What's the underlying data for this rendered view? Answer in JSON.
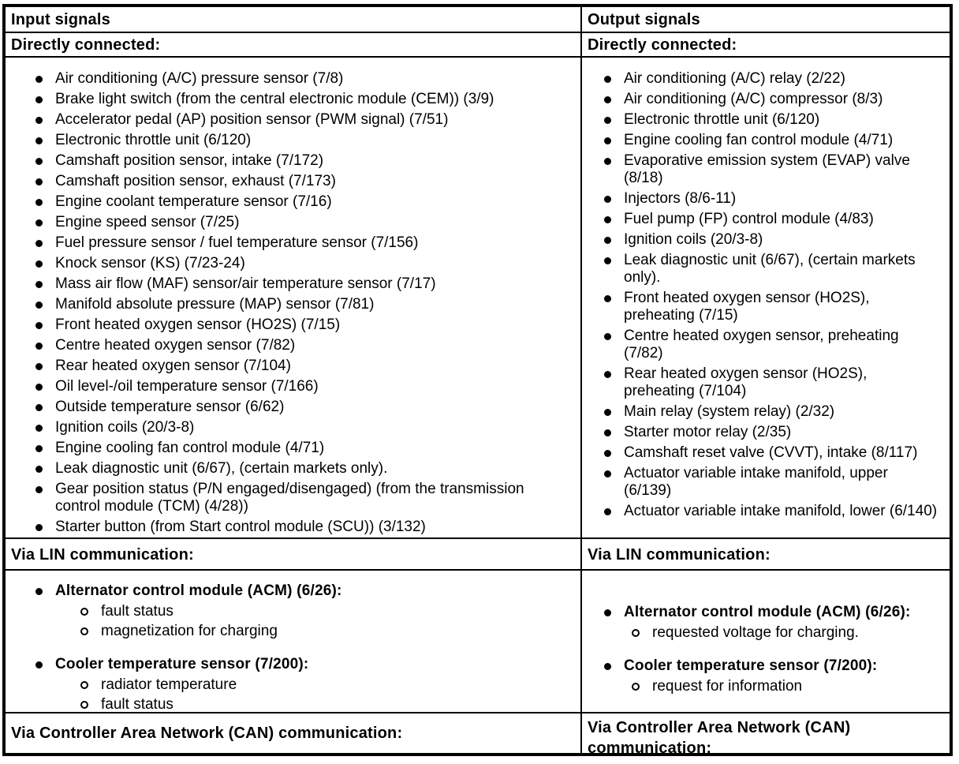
{
  "colors": {
    "background": "#ffffff",
    "text": "#000000",
    "border": "#000000"
  },
  "columns": [
    {
      "header": "Input signals",
      "directly_connected": {
        "label": "Directly connected:",
        "items": [
          "Air conditioning (A/C) pressure sensor (7/8)",
          "Brake light switch (from the central electronic module (CEM)) (3/9)",
          "Accelerator pedal (AP) position sensor (PWM signal) (7/51)",
          "Electronic throttle unit (6/120)",
          "Camshaft position sensor, intake (7/172)",
          "Camshaft position sensor, exhaust (7/173)",
          "Engine coolant temperature sensor (7/16)",
          "Engine speed sensor (7/25)",
          "Fuel pressure sensor / fuel temperature sensor (7/156)",
          "Knock sensor (KS) (7/23-24)",
          "Mass air flow (MAF) sensor/air temperature sensor (7/17)",
          "Manifold absolute pressure (MAP) sensor (7/81)",
          "Front heated oxygen sensor (HO2S) (7/15)",
          "Centre heated oxygen sensor (7/82)",
          "Rear heated oxygen sensor (7/104)",
          "Oil level-/oil temperature sensor (7/166)",
          "Outside temperature sensor (6/62)",
          "Ignition coils (20/3-8)",
          "Engine cooling fan control module (4/71)",
          "Leak diagnostic unit (6/67), (certain markets only).",
          "Gear position status (P/N engaged/disengaged) (from the transmission control module (TCM) (4/28))",
          "Starter button (from Start control module (SCU)) (3/132)"
        ]
      },
      "lin": {
        "label": "Via LIN communication:",
        "groups": [
          {
            "title": "Alternator control module (ACM) (6/26):",
            "subitems": [
              "fault status",
              "magnetization for charging"
            ]
          },
          {
            "title": "Cooler temperature sensor (7/200):",
            "subitems": [
              "radiator temperature",
              "fault status"
            ]
          }
        ]
      },
      "can": {
        "label": "Via Controller Area Network (CAN) communication:"
      }
    },
    {
      "header": "Output signals",
      "directly_connected": {
        "label": "Directly connected:",
        "items": [
          "Air conditioning (A/C) relay (2/22)",
          "Air conditioning (A/C) compressor (8/3)",
          "Electronic throttle unit (6/120)",
          "Engine cooling fan control module (4/71)",
          "Evaporative emission system (EVAP) valve (8/18)",
          "Injectors (8/6-11)",
          "Fuel pump (FP) control module (4/83)",
          "Ignition coils (20/3-8)",
          "Leak diagnostic unit (6/67), (certain markets only).",
          "Front heated oxygen sensor (HO2S), preheating (7/15)",
          "Centre heated oxygen sensor, preheating (7/82)",
          "Rear heated oxygen sensor (HO2S), preheating (7/104)",
          "Main relay (system relay) (2/32)",
          "Starter motor relay (2/35)",
          "Camshaft reset valve (CVVT), intake (8/117)",
          "Actuator variable intake manifold, upper (6/139)",
          "Actuator variable intake manifold, lower (6/140)"
        ]
      },
      "lin": {
        "label": "Via LIN communication:",
        "groups": [
          {
            "title": "Alternator control module (ACM) (6/26):",
            "subitems": [
              "requested voltage for charging."
            ]
          },
          {
            "title": "Cooler temperature sensor (7/200):",
            "subitems": [
              "request for information"
            ]
          }
        ]
      },
      "can": {
        "label": "Via Controller Area Network (CAN) communication:"
      }
    }
  ]
}
